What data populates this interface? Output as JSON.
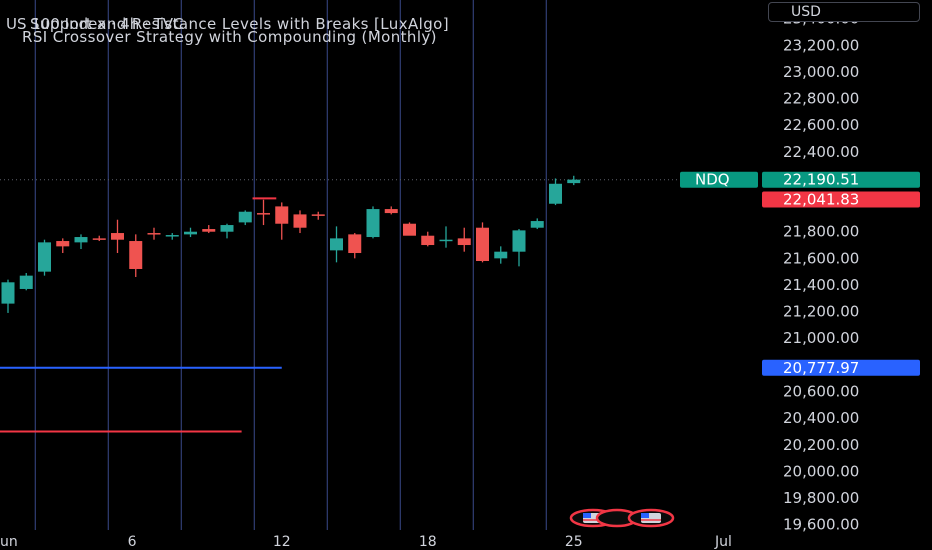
{
  "header": {
    "symbol_title": "US 100 Index · 4h · TVC",
    "indicators": [
      "Support and Resistance Levels with Breaks [LuxAlgo]",
      "RSI Crossover Strategy with Compounding (Monthly)"
    ]
  },
  "currency_button": {
    "label": "USD"
  },
  "colors": {
    "up": "#26a69a",
    "down": "#ef5350",
    "vline": "#3a4a8c",
    "support_line": "#2962ff",
    "resistance_line": "#f23645",
    "ndq_tag": "#089981",
    "price_tag": "#089981",
    "red_tag": "#f23645",
    "blue_tag": "#2962ff"
  },
  "chart_data": {
    "type": "candlestick",
    "title": "US 100 Index · 4h · TVC",
    "ylim": [
      19560,
      23540
    ],
    "y_ticks": [
      "23,400.00",
      "23,200.00",
      "23,000.00",
      "22,800.00",
      "22,600.00",
      "22,400.00",
      "21,800.00",
      "21,600.00",
      "21,400.00",
      "21,200.00",
      "21,000.00",
      "20,600.00",
      "20,400.00",
      "20,200.00",
      "20,000.00",
      "19,800.00",
      "19,600.00"
    ],
    "y_tick_values": [
      23400,
      23200,
      23000,
      22800,
      22600,
      22400,
      21800,
      21600,
      21400,
      21200,
      21000,
      20600,
      20400,
      20200,
      20000,
      19800,
      19600
    ],
    "x_ticks": [
      {
        "label": "un",
        "bar": -1
      },
      {
        "label": "6",
        "bar": 6.8
      },
      {
        "label": "12",
        "bar": 15
      },
      {
        "label": "18",
        "bar": 23
      },
      {
        "label": "25",
        "bar": 31
      },
      {
        "label": "Jul",
        "bar": 39.2
      }
    ],
    "session_lines": [
      1,
      5,
      9,
      13,
      17,
      21,
      25,
      29
    ],
    "candles": [
      {
        "o": 21260,
        "h": 21440,
        "l": 21190,
        "c": 21420
      },
      {
        "o": 21370,
        "h": 21490,
        "l": 21360,
        "c": 21470
      },
      {
        "o": 21500,
        "h": 21740,
        "l": 21470,
        "c": 21720
      },
      {
        "o": 21730,
        "h": 21750,
        "l": 21640,
        "c": 21690
      },
      {
        "o": 21720,
        "h": 21780,
        "l": 21670,
        "c": 21760
      },
      {
        "o": 21750,
        "h": 21770,
        "l": 21730,
        "c": 21740
      },
      {
        "o": 21790,
        "h": 21890,
        "l": 21640,
        "c": 21740
      },
      {
        "o": 21730,
        "h": 21780,
        "l": 21460,
        "c": 21520
      },
      {
        "o": 21790,
        "h": 21830,
        "l": 21740,
        "c": 21780
      },
      {
        "o": 21770,
        "h": 21790,
        "l": 21740,
        "c": 21775
      },
      {
        "o": 21780,
        "h": 21830,
        "l": 21760,
        "c": 21800
      },
      {
        "o": 21820,
        "h": 21850,
        "l": 21790,
        "c": 21800
      },
      {
        "o": 21800,
        "h": 21860,
        "l": 21750,
        "c": 21850
      },
      {
        "o": 21870,
        "h": 21960,
        "l": 21850,
        "c": 21950
      },
      {
        "o": 21940,
        "h": 22040,
        "l": 21850,
        "c": 21930
      },
      {
        "o": 21990,
        "h": 22020,
        "l": 21740,
        "c": 21860
      },
      {
        "o": 21930,
        "h": 21960,
        "l": 21790,
        "c": 21830
      },
      {
        "o": 21930,
        "h": 21950,
        "l": 21890,
        "c": 21920
      },
      {
        "o": 21660,
        "h": 21840,
        "l": 21570,
        "c": 21750
      },
      {
        "o": 21780,
        "h": 21790,
        "l": 21600,
        "c": 21640
      },
      {
        "o": 21760,
        "h": 21990,
        "l": 21750,
        "c": 21970
      },
      {
        "o": 21970,
        "h": 21990,
        "l": 21930,
        "c": 21940
      },
      {
        "o": 21860,
        "h": 21870,
        "l": 21780,
        "c": 21770
      },
      {
        "o": 21770,
        "h": 21800,
        "l": 21690,
        "c": 21700
      },
      {
        "o": 21730,
        "h": 21840,
        "l": 21680,
        "c": 21740
      },
      {
        "o": 21750,
        "h": 21830,
        "l": 21650,
        "c": 21700
      },
      {
        "o": 21830,
        "h": 21870,
        "l": 21570,
        "c": 21580
      },
      {
        "o": 21600,
        "h": 21690,
        "l": 21560,
        "c": 21650
      },
      {
        "o": 21650,
        "h": 21820,
        "l": 21540,
        "c": 21810
      },
      {
        "o": 21830,
        "h": 21900,
        "l": 21820,
        "c": 21880
      },
      {
        "o": 22010,
        "h": 22200,
        "l": 22000,
        "c": 22160
      },
      {
        "o": 22165,
        "h": 22220,
        "l": 22150,
        "c": 22191
      }
    ],
    "horizontal_levels": [
      {
        "value": 22190.51,
        "style": "dotted",
        "to_bar": "end"
      },
      {
        "value": 20777.97,
        "style": "support",
        "to_bar": 15
      },
      {
        "value": 20300,
        "style": "resistance",
        "to_bar": 12.8
      },
      {
        "value": 22050,
        "style": "resistance",
        "from_bar": 13.4,
        "to_bar": 14.7
      }
    ],
    "price_tags": [
      {
        "label": "NDQ",
        "value": 22190.51,
        "text": "22,190.51",
        "color": "price_tag"
      },
      {
        "text": "22,041.83",
        "value": 22041.83,
        "color": "red_tag"
      },
      {
        "text": "20,777.97",
        "value": 20777.97,
        "color": "blue_tag"
      }
    ]
  }
}
